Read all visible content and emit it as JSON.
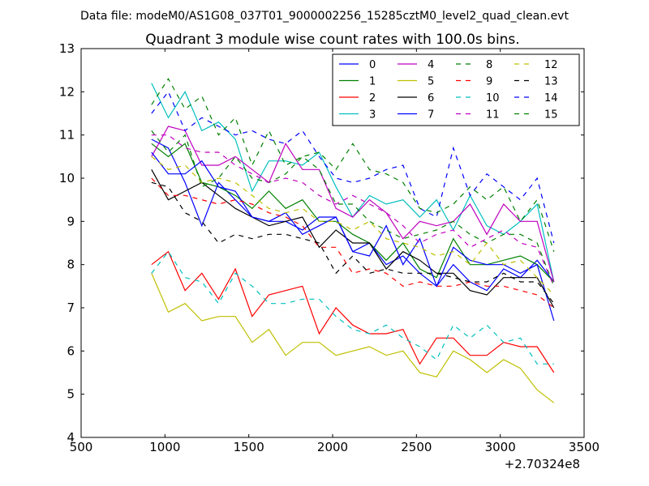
{
  "chart_data": {
    "type": "line",
    "suptitle": "Data file: modeM0/AS1G08_037T01_9000002256_15285cztM0_level2_quad_clean.evt",
    "title": "Quadrant 3 module wise count rates with 100.0s bins.",
    "xlabel": "",
    "ylabel": "",
    "x_offset_label": "+2.70324e8",
    "xlim": [
      500,
      3500
    ],
    "ylim": [
      4,
      13
    ],
    "xticks": [
      500,
      1000,
      1500,
      2000,
      2500,
      3000,
      3500
    ],
    "yticks": [
      4,
      5,
      6,
      7,
      8,
      9,
      10,
      11,
      12,
      13
    ],
    "grid": false,
    "legend_position": "upper-right",
    "legend_columns": 4,
    "x": [
      920,
      1020,
      1120,
      1220,
      1320,
      1420,
      1520,
      1620,
      1720,
      1820,
      1920,
      2020,
      2120,
      2220,
      2320,
      2420,
      2520,
      2620,
      2720,
      2820,
      2920,
      3020,
      3120,
      3220,
      3320
    ],
    "series": [
      {
        "name": "0",
        "color": "#0000ff",
        "style": "solid",
        "values": [
          10.9,
          10.7,
          9.9,
          8.9,
          9.9,
          9.5,
          9.1,
          9.0,
          9.0,
          8.8,
          9.1,
          9.1,
          8.3,
          8.5,
          8.0,
          8.2,
          7.8,
          7.5,
          8.0,
          7.6,
          7.4,
          7.9,
          7.7,
          8.1,
          7.6
        ]
      },
      {
        "name": "1",
        "color": "#008000",
        "style": "solid",
        "values": [
          10.8,
          10.5,
          10.8,
          9.9,
          9.8,
          9.6,
          9.3,
          9.7,
          9.3,
          9.5,
          9.0,
          9.0,
          8.7,
          8.5,
          8.1,
          8.5,
          7.9,
          7.7,
          8.6,
          8.0,
          8.0,
          8.1,
          8.2,
          8.0,
          7.6
        ]
      },
      {
        "name": "2",
        "color": "#ff0000",
        "style": "solid",
        "values": [
          8.0,
          8.3,
          7.4,
          7.8,
          7.2,
          7.9,
          6.8,
          7.3,
          7.4,
          7.5,
          6.4,
          7.0,
          6.6,
          6.4,
          6.4,
          6.5,
          5.7,
          6.3,
          6.3,
          5.9,
          5.9,
          6.2,
          6.1,
          6.1,
          5.5
        ]
      },
      {
        "name": "3",
        "color": "#00bfbf",
        "style": "solid",
        "values": [
          12.2,
          11.4,
          12.0,
          11.1,
          11.3,
          10.9,
          9.7,
          10.4,
          10.4,
          10.3,
          10.6,
          9.8,
          9.1,
          9.6,
          9.4,
          9.5,
          9.1,
          9.5,
          8.8,
          9.6,
          8.9,
          8.7,
          9.0,
          9.4,
          7.6
        ]
      },
      {
        "name": "4",
        "color": "#bf00bf",
        "style": "solid",
        "values": [
          10.5,
          11.2,
          11.1,
          10.3,
          10.3,
          10.5,
          10.2,
          9.9,
          10.8,
          10.2,
          10.2,
          9.3,
          9.1,
          9.5,
          9.2,
          8.6,
          9.0,
          8.9,
          9.0,
          9.4,
          8.7,
          9.4,
          9.0,
          9.0,
          7.6
        ]
      },
      {
        "name": "5",
        "color": "#bfbf00",
        "style": "solid",
        "values": [
          7.8,
          6.9,
          7.1,
          6.7,
          6.8,
          6.8,
          6.2,
          6.5,
          5.9,
          6.2,
          6.2,
          5.9,
          6.0,
          6.1,
          5.9,
          6.0,
          5.5,
          5.4,
          6.0,
          5.8,
          5.5,
          5.8,
          5.6,
          5.1,
          4.8
        ]
      },
      {
        "name": "6",
        "color": "#000000",
        "style": "solid",
        "values": [
          10.2,
          9.5,
          9.7,
          9.9,
          9.6,
          9.3,
          9.1,
          8.9,
          9.0,
          9.1,
          8.4,
          8.8,
          8.5,
          8.5,
          7.9,
          8.3,
          8.1,
          7.8,
          7.8,
          7.4,
          7.3,
          7.7,
          7.7,
          7.7,
          7.0
        ]
      },
      {
        "name": "7",
        "color": "#0000ff",
        "style": "solid",
        "values": [
          10.6,
          10.1,
          10.1,
          10.4,
          9.8,
          9.7,
          9.1,
          9.0,
          9.2,
          8.7,
          8.9,
          9.1,
          8.3,
          8.2,
          8.9,
          8.0,
          8.6,
          7.5,
          8.4,
          8.1,
          8.0,
          8.0,
          7.8,
          8.0,
          6.7
        ]
      },
      {
        "name": "8",
        "color": "#008000",
        "style": "dashed",
        "values": [
          11.1,
          10.6,
          11.0,
          9.8,
          10.0,
          10.5,
          10.0,
          9.9,
          10.1,
          10.5,
          10.2,
          9.4,
          9.4,
          9.0,
          8.8,
          8.6,
          8.7,
          8.8,
          9.0,
          8.7,
          8.5,
          8.7,
          8.7,
          8.5,
          7.5
        ]
      },
      {
        "name": "9",
        "color": "#ff0000",
        "style": "dashed",
        "values": [
          10.0,
          9.6,
          9.6,
          9.5,
          9.4,
          9.5,
          9.4,
          9.2,
          9.1,
          8.9,
          8.4,
          8.4,
          7.8,
          7.9,
          7.8,
          7.5,
          7.6,
          7.5,
          7.5,
          7.6,
          7.5,
          7.5,
          7.4,
          7.3,
          7.0
        ]
      },
      {
        "name": "10",
        "color": "#00bfbf",
        "style": "dashed",
        "values": [
          7.8,
          8.3,
          7.7,
          7.6,
          7.1,
          7.8,
          7.5,
          7.1,
          7.1,
          7.2,
          7.2,
          6.8,
          6.5,
          6.4,
          6.6,
          6.3,
          6.1,
          5.8,
          6.6,
          6.3,
          6.6,
          6.2,
          6.3,
          5.7,
          5.7
        ]
      },
      {
        "name": "11",
        "color": "#bf00bf",
        "style": "dashed",
        "values": [
          11.0,
          11.0,
          10.7,
          10.6,
          10.6,
          10.3,
          10.1,
          9.9,
          10.0,
          9.9,
          9.6,
          9.4,
          9.6,
          9.4,
          9.2,
          8.9,
          8.5,
          8.7,
          8.8,
          8.4,
          8.6,
          8.8,
          8.5,
          8.4,
          7.5
        ]
      },
      {
        "name": "12",
        "color": "#bfbf00",
        "style": "dashed",
        "values": [
          10.5,
          10.2,
          10.3,
          9.9,
          10.0,
          9.9,
          9.6,
          9.3,
          9.2,
          9.3,
          9.0,
          9.0,
          8.8,
          9.0,
          8.6,
          8.5,
          8.4,
          8.2,
          8.3,
          8.0,
          8.5,
          8.0,
          8.1,
          7.7,
          7.3
        ]
      },
      {
        "name": "13",
        "color": "#000000",
        "style": "dashed",
        "values": [
          9.9,
          9.8,
          9.2,
          9.0,
          8.5,
          8.7,
          8.6,
          8.7,
          8.7,
          8.6,
          8.5,
          7.8,
          8.2,
          7.8,
          7.9,
          7.8,
          7.8,
          7.8,
          7.7,
          7.6,
          7.6,
          7.8,
          7.6,
          7.6,
          7.1
        ]
      },
      {
        "name": "14",
        "color": "#0000ff",
        "style": "dashed",
        "values": [
          11.5,
          12.0,
          11.1,
          11.4,
          11.2,
          11.0,
          11.1,
          10.9,
          10.8,
          11.1,
          10.5,
          10.0,
          9.9,
          10.0,
          10.2,
          10.3,
          9.3,
          9.1,
          10.7,
          9.6,
          10.1,
          9.8,
          9.5,
          10.0,
          8.5
        ]
      },
      {
        "name": "15",
        "color": "#008000",
        "style": "dashed",
        "values": [
          11.7,
          12.3,
          11.6,
          11.9,
          11.0,
          11.4,
          10.3,
          11.1,
          10.3,
          10.5,
          10.6,
          10.2,
          10.8,
          10.2,
          10.1,
          9.9,
          9.3,
          9.2,
          9.4,
          9.8,
          9.5,
          9.8,
          9.0,
          9.5,
          8.3
        ]
      }
    ]
  }
}
